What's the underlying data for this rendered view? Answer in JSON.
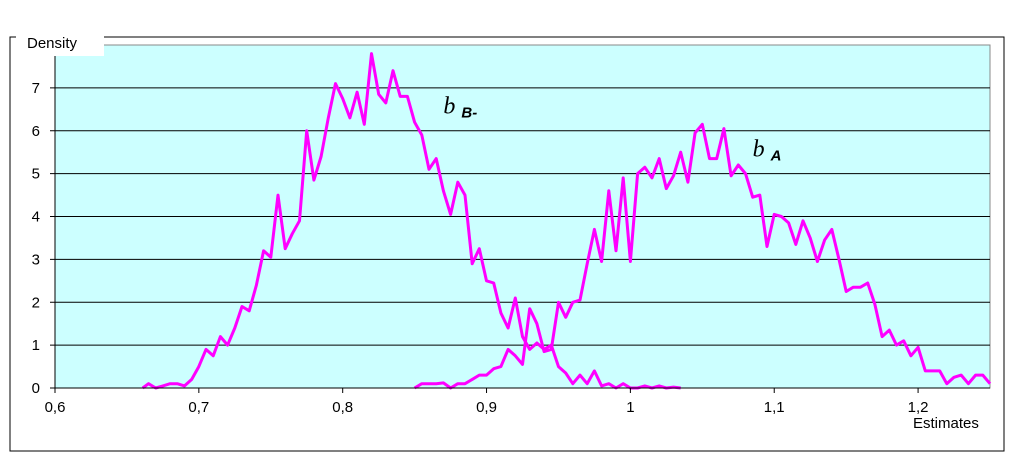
{
  "chart_data": {
    "type": "line",
    "xlabel": "Estimates",
    "ylabel": "Density",
    "xlim": [
      0.6,
      1.25
    ],
    "ylim": [
      0,
      8
    ],
    "x_ticks": [
      "0,6",
      "0,7",
      "0,8",
      "0,9",
      "1",
      "1,1",
      "1,2"
    ],
    "x_tick_values": [
      0.6,
      0.7,
      0.8,
      0.9,
      1.0,
      1.1,
      1.2
    ],
    "y_ticks": [
      "0",
      "1",
      "2",
      "3",
      "4",
      "5",
      "6",
      "7"
    ],
    "y_tick_values": [
      0,
      1,
      2,
      3,
      4,
      5,
      6,
      7
    ],
    "grid": "horizontal",
    "plot_background": "#ccffff",
    "line_color": "#ff00ff",
    "series": [
      {
        "name": "b B-",
        "label_main": "b",
        "label_sub": "B-",
        "label_pos": [
          0.87,
          6.4
        ],
        "x": [
          0.661,
          0.665,
          0.67,
          0.675,
          0.68,
          0.685,
          0.69,
          0.695,
          0.7,
          0.705,
          0.71,
          0.715,
          0.72,
          0.725,
          0.73,
          0.735,
          0.74,
          0.745,
          0.75,
          0.755,
          0.76,
          0.765,
          0.77,
          0.775,
          0.78,
          0.785,
          0.79,
          0.795,
          0.8,
          0.805,
          0.81,
          0.815,
          0.82,
          0.825,
          0.83,
          0.835,
          0.84,
          0.845,
          0.85,
          0.855,
          0.86,
          0.865,
          0.87,
          0.875,
          0.88,
          0.885,
          0.89,
          0.895,
          0.9,
          0.905,
          0.91,
          0.915,
          0.92,
          0.925,
          0.93,
          0.935,
          0.94,
          0.945,
          0.95,
          0.955,
          0.96,
          0.965,
          0.97,
          0.975,
          0.98,
          0.985,
          0.99,
          0.995,
          1.0,
          1.005,
          1.01,
          1.015,
          1.02,
          1.025,
          1.03,
          1.035
        ],
        "values": [
          0.0,
          0.1,
          0.0,
          0.05,
          0.1,
          0.1,
          0.05,
          0.2,
          0.5,
          0.9,
          0.75,
          1.2,
          1.0,
          1.4,
          1.9,
          1.8,
          2.4,
          3.2,
          3.05,
          4.5,
          3.25,
          3.6,
          3.9,
          6.0,
          4.85,
          5.4,
          6.3,
          7.1,
          6.75,
          6.3,
          6.9,
          6.15,
          7.8,
          6.85,
          6.65,
          7.4,
          6.8,
          6.8,
          6.2,
          5.9,
          5.1,
          5.35,
          4.6,
          4.05,
          4.8,
          4.5,
          2.9,
          3.25,
          2.5,
          2.45,
          1.75,
          1.4,
          2.1,
          1.2,
          0.9,
          1.05,
          0.9,
          1.0,
          0.5,
          0.35,
          0.1,
          0.3,
          0.1,
          0.4,
          0.05,
          0.1,
          0.0,
          0.1,
          0.0,
          0.0,
          0.05,
          0.0,
          0.05,
          0.0,
          0.02,
          0.0
        ]
      },
      {
        "name": "b A",
        "label_main": "b",
        "label_sub": "A",
        "label_pos": [
          1.085,
          5.4
        ],
        "x": [
          0.85,
          0.855,
          0.86,
          0.865,
          0.87,
          0.875,
          0.88,
          0.885,
          0.89,
          0.895,
          0.9,
          0.905,
          0.91,
          0.915,
          0.92,
          0.925,
          0.93,
          0.935,
          0.94,
          0.945,
          0.95,
          0.955,
          0.96,
          0.965,
          0.97,
          0.975,
          0.98,
          0.985,
          0.99,
          0.995,
          1.0,
          1.005,
          1.01,
          1.015,
          1.02,
          1.025,
          1.03,
          1.035,
          1.04,
          1.045,
          1.05,
          1.055,
          1.06,
          1.065,
          1.07,
          1.075,
          1.08,
          1.085,
          1.09,
          1.095,
          1.1,
          1.105,
          1.11,
          1.115,
          1.12,
          1.125,
          1.13,
          1.135,
          1.14,
          1.145,
          1.15,
          1.155,
          1.16,
          1.165,
          1.17,
          1.175,
          1.18,
          1.185,
          1.19,
          1.195,
          1.2,
          1.205,
          1.21,
          1.215,
          1.22,
          1.225,
          1.23,
          1.235,
          1.24,
          1.245,
          1.25
        ],
        "values": [
          0.0,
          0.1,
          0.1,
          0.1,
          0.12,
          0.0,
          0.1,
          0.1,
          0.2,
          0.3,
          0.3,
          0.45,
          0.5,
          0.9,
          0.75,
          0.55,
          1.85,
          1.5,
          0.85,
          0.9,
          2.0,
          1.65,
          2.0,
          2.05,
          2.9,
          3.7,
          2.95,
          4.6,
          3.2,
          4.9,
          2.95,
          5.0,
          5.15,
          4.9,
          5.35,
          4.65,
          4.95,
          5.5,
          4.8,
          5.95,
          6.15,
          5.35,
          5.35,
          6.05,
          4.95,
          5.2,
          5.0,
          4.45,
          4.5,
          3.3,
          4.05,
          4.0,
          3.85,
          3.35,
          3.9,
          3.5,
          2.95,
          3.45,
          3.7,
          3.0,
          2.25,
          2.35,
          2.35,
          2.45,
          1.95,
          1.2,
          1.35,
          1.0,
          1.1,
          0.75,
          0.95,
          0.4,
          0.4,
          0.4,
          0.1,
          0.25,
          0.3,
          0.1,
          0.3,
          0.3,
          0.1
        ]
      }
    ]
  }
}
